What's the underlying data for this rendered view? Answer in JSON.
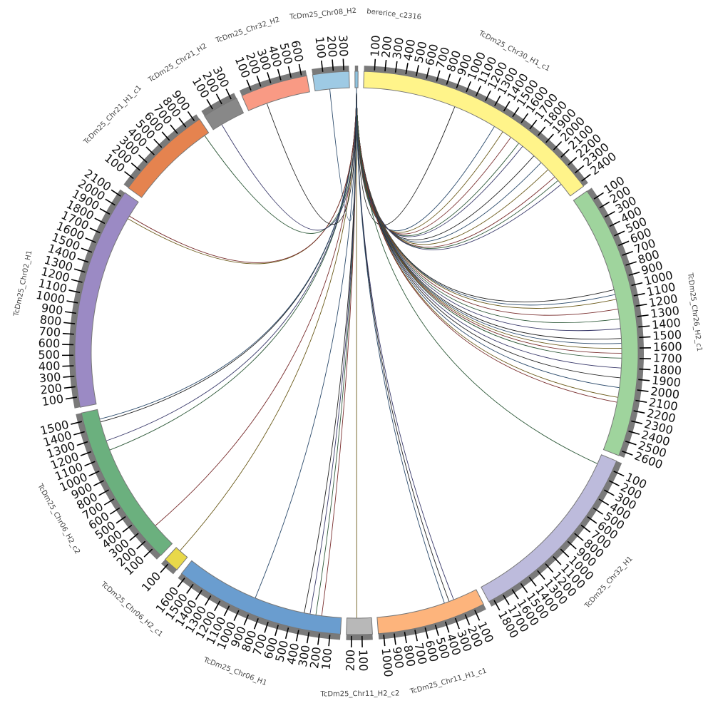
{
  "segments": [
    {
      "name": "bererice_c2316",
      "length": 30,
      "color": "#8dc3e0"
    },
    {
      "name": "TcDm25_Chr30_H1_c1",
      "length": 2450,
      "color": "#fff48a"
    },
    {
      "name": "TcDm25_Chr26_H2_c1",
      "length": 2650,
      "color": "#9fd49d"
    },
    {
      "name": "TcDm25_Chr32_H1",
      "length": 1850,
      "color": "#bdbbdc"
    },
    {
      "name": "TcDm25_Chr11_H1_c1",
      "length": 1050,
      "color": "#fdb47c"
    },
    {
      "name": "TcDm25_Chr11_H2_c2",
      "length": 250,
      "color": "#b8b8b8"
    },
    {
      "name": "TcDm25_Chr06_H1",
      "length": 1650,
      "color": "#6a9dcf"
    },
    {
      "name": "TcDm25_Chr06_H2_c1",
      "length": 150,
      "color": "#e8d84a"
    },
    {
      "name": "TcDm25_Chr06_H2_c2",
      "length": 1580,
      "color": "#6bb07e"
    },
    {
      "name": "TcDm25_Chr02_H1",
      "length": 2150,
      "color": "#9b8ac4"
    },
    {
      "name": "TcDm25_Chr21_H1_c1",
      "length": 950,
      "color": "#e5834f"
    },
    {
      "name": "TcDm25_Chr21_H2",
      "length": 350,
      "color": "#888888"
    },
    {
      "name": "TcDm25_Chr32_H2",
      "length": 650,
      "color": "#f99a84"
    },
    {
      "name": "TcDm25_Chr08_H2",
      "length": 350,
      "color": "#9ecae4"
    }
  ],
  "tick_interval": 100,
  "link_colors": [
    "#222222",
    "#2b4a6b",
    "#6b5a1a",
    "#7a2f2f",
    "#2f5a3a",
    "#3a3a6b"
  ],
  "links": [
    {
      "source": {
        "segment": 0,
        "position": 15
      },
      "target": {
        "segment": 1,
        "position": 950
      }
    },
    {
      "source": {
        "segment": 0,
        "position": 15
      },
      "target": {
        "segment": 1,
        "position": 1400
      }
    },
    {
      "source": {
        "segment": 0,
        "position": 15
      },
      "target": {
        "segment": 1,
        "position": 1500
      }
    },
    {
      "source": {
        "segment": 0,
        "position": 15
      },
      "target": {
        "segment": 1,
        "position": 1600
      }
    },
    {
      "source": {
        "segment": 0,
        "position": 15
      },
      "target": {
        "segment": 1,
        "position": 1700
      }
    },
    {
      "source": {
        "segment": 0,
        "position": 15
      },
      "target": {
        "segment": 1,
        "position": 1750
      }
    },
    {
      "source": {
        "segment": 0,
        "position": 15
      },
      "target": {
        "segment": 1,
        "position": 1900
      }
    },
    {
      "source": {
        "segment": 0,
        "position": 15
      },
      "target": {
        "segment": 1,
        "position": 2000
      }
    },
    {
      "source": {
        "segment": 0,
        "position": 15
      },
      "target": {
        "segment": 1,
        "position": 2100
      }
    },
    {
      "source": {
        "segment": 0,
        "position": 15
      },
      "target": {
        "segment": 1,
        "position": 2200
      }
    },
    {
      "source": {
        "segment": 0,
        "position": 15
      },
      "target": {
        "segment": 1,
        "position": 2250
      }
    },
    {
      "source": {
        "segment": 0,
        "position": 15
      },
      "target": {
        "segment": 1,
        "position": 2300
      }
    },
    {
      "source": {
        "segment": 0,
        "position": 15
      },
      "target": {
        "segment": 2,
        "position": 1000
      }
    },
    {
      "source": {
        "segment": 0,
        "position": 15
      },
      "target": {
        "segment": 2,
        "position": 1050
      }
    },
    {
      "source": {
        "segment": 0,
        "position": 15
      },
      "target": {
        "segment": 2,
        "position": 1100
      }
    },
    {
      "source": {
        "segment": 0,
        "position": 15
      },
      "target": {
        "segment": 2,
        "position": 1200
      }
    },
    {
      "source": {
        "segment": 0,
        "position": 15
      },
      "target": {
        "segment": 2,
        "position": 1300
      }
    },
    {
      "source": {
        "segment": 0,
        "position": 15
      },
      "target": {
        "segment": 2,
        "position": 1400
      }
    },
    {
      "source": {
        "segment": 0,
        "position": 15
      },
      "target": {
        "segment": 2,
        "position": 1500
      }
    },
    {
      "source": {
        "segment": 0,
        "position": 15
      },
      "target": {
        "segment": 2,
        "position": 1550
      }
    },
    {
      "source": {
        "segment": 0,
        "position": 15
      },
      "target": {
        "segment": 2,
        "position": 1600
      }
    },
    {
      "source": {
        "segment": 0,
        "position": 15
      },
      "target": {
        "segment": 2,
        "position": 1650
      }
    },
    {
      "source": {
        "segment": 0,
        "position": 15
      },
      "target": {
        "segment": 2,
        "position": 1700
      }
    },
    {
      "source": {
        "segment": 0,
        "position": 15
      },
      "target": {
        "segment": 2,
        "position": 1800
      }
    },
    {
      "source": {
        "segment": 0,
        "position": 15
      },
      "target": {
        "segment": 2,
        "position": 1900
      }
    },
    {
      "source": {
        "segment": 0,
        "position": 15
      },
      "target": {
        "segment": 2,
        "position": 2000
      }
    },
    {
      "source": {
        "segment": 0,
        "position": 15
      },
      "target": {
        "segment": 2,
        "position": 2100
      }
    },
    {
      "source": {
        "segment": 0,
        "position": 15
      },
      "target": {
        "segment": 2,
        "position": 2150
      }
    },
    {
      "source": {
        "segment": 0,
        "position": 15
      },
      "target": {
        "segment": 3,
        "position": 100
      }
    },
    {
      "source": {
        "segment": 0,
        "position": 15
      },
      "target": {
        "segment": 4,
        "position": 250
      }
    },
    {
      "source": {
        "segment": 0,
        "position": 15
      },
      "target": {
        "segment": 4,
        "position": 300
      }
    },
    {
      "source": {
        "segment": 0,
        "position": 15
      },
      "target": {
        "segment": 4,
        "position": 350
      }
    },
    {
      "source": {
        "segment": 0,
        "position": 15
      },
      "target": {
        "segment": 5,
        "position": 150
      }
    },
    {
      "source": {
        "segment": 0,
        "position": 15
      },
      "target": {
        "segment": 6,
        "position": 200
      }
    },
    {
      "source": {
        "segment": 0,
        "position": 15
      },
      "target": {
        "segment": 6,
        "position": 260
      }
    },
    {
      "source": {
        "segment": 0,
        "position": 15
      },
      "target": {
        "segment": 6,
        "position": 320
      }
    },
    {
      "source": {
        "segment": 0,
        "position": 15
      },
      "target": {
        "segment": 6,
        "position": 380
      }
    },
    {
      "source": {
        "segment": 0,
        "position": 15
      },
      "target": {
        "segment": 6,
        "position": 900
      }
    },
    {
      "source": {
        "segment": 0,
        "position": 15
      },
      "target": {
        "segment": 7,
        "position": 100
      }
    },
    {
      "source": {
        "segment": 0,
        "position": 15
      },
      "target": {
        "segment": 8,
        "position": 250
      }
    },
    {
      "source": {
        "segment": 0,
        "position": 15
      },
      "target": {
        "segment": 8,
        "position": 1150
      }
    },
    {
      "source": {
        "segment": 0,
        "position": 15
      },
      "target": {
        "segment": 8,
        "position": 1250
      }
    },
    {
      "source": {
        "segment": 0,
        "position": 15
      },
      "target": {
        "segment": 8,
        "position": 1450
      }
    },
    {
      "source": {
        "segment": 0,
        "position": 15
      },
      "target": {
        "segment": 8,
        "position": 1480
      }
    },
    {
      "source": {
        "segment": 0,
        "position": 15
      },
      "target": {
        "segment": 9,
        "position": 1950
      }
    },
    {
      "source": {
        "segment": 0,
        "position": 15
      },
      "target": {
        "segment": 9,
        "position": 1980
      }
    },
    {
      "source": {
        "segment": 0,
        "position": 15
      },
      "target": {
        "segment": 10,
        "position": 900
      }
    },
    {
      "source": {
        "segment": 0,
        "position": 15
      },
      "target": {
        "segment": 11,
        "position": 100
      }
    },
    {
      "source": {
        "segment": 0,
        "position": 15
      },
      "target": {
        "segment": 12,
        "position": 200
      }
    },
    {
      "source": {
        "segment": 0,
        "position": 15
      },
      "target": {
        "segment": 13,
        "position": 150
      }
    }
  ]
}
